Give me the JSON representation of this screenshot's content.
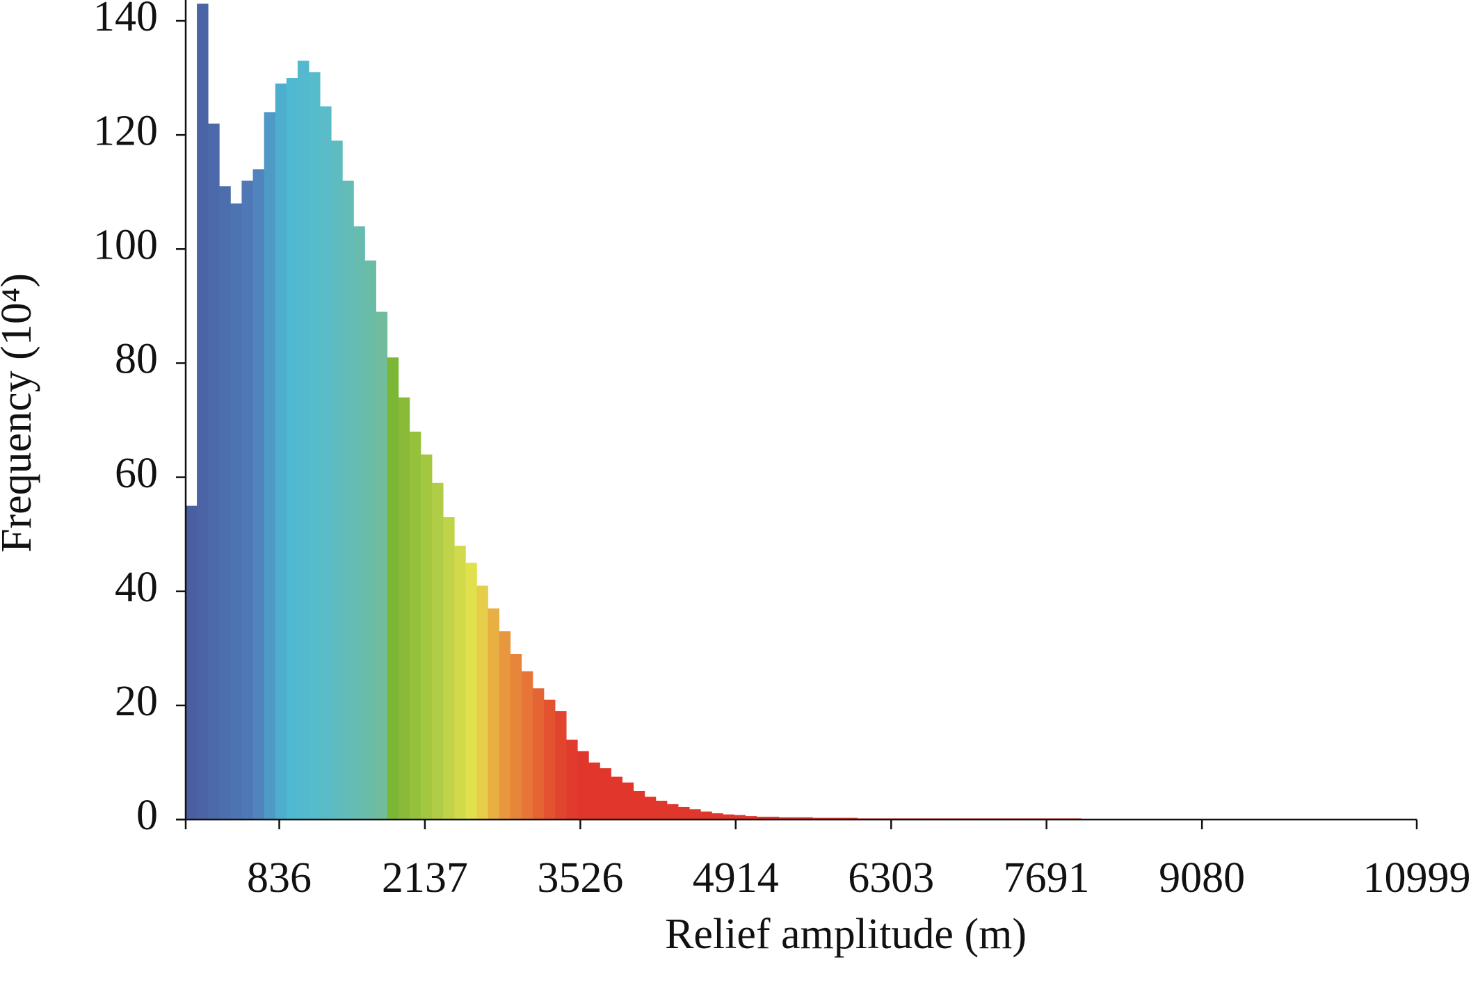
{
  "chart_data": {
    "type": "histogram",
    "x_label": "Relief amplitude (m)",
    "y_label": "Frequency (10⁴)",
    "bins": [
      0,
      100,
      200,
      300,
      400,
      500,
      600,
      700,
      800,
      900,
      1000,
      1100,
      1200,
      1300,
      1400,
      1500,
      1600,
      1700,
      1800,
      1900,
      2000,
      2100,
      2200,
      2300,
      2400,
      2500,
      2600,
      2700,
      2800,
      2900,
      3000,
      3100,
      3200,
      3300,
      3400,
      3500,
      3600,
      3700,
      3800,
      3900,
      4000,
      4100,
      4200,
      4300,
      4400,
      4500,
      4600,
      4700,
      4800,
      4900,
      5000,
      5100,
      5200,
      5300,
      5400,
      5500,
      5600,
      5700,
      5800,
      5900,
      6000,
      6100,
      6200,
      6300,
      6400,
      6500,
      6600,
      6700,
      6800,
      6900,
      7000,
      7100,
      7200,
      7300,
      7400,
      7500,
      7600,
      7700,
      7800,
      7900,
      8000,
      8100,
      8200,
      8300,
      8400,
      8500,
      8600,
      8700,
      8800,
      8900,
      9000,
      9100,
      9200,
      9300,
      9400,
      9500,
      9600,
      9700,
      9800,
      9900,
      10000,
      10100,
      10200,
      10300,
      10400,
      10500,
      10600,
      10700,
      10800,
      10900,
      10999
    ],
    "values": [
      55,
      143,
      122,
      111,
      108,
      112,
      114,
      124,
      129,
      130,
      133,
      131,
      125,
      119,
      112,
      104,
      98,
      89,
      81,
      74,
      68,
      64,
      59,
      53,
      48,
      45,
      41,
      37,
      33,
      29,
      26,
      23,
      21,
      19,
      14,
      12,
      10,
      9,
      7.5,
      6.5,
      5,
      4,
      3.3,
      2.7,
      2.2,
      1.8,
      1.4,
      1.1,
      0.9,
      0.8,
      0.6,
      0.5,
      0.5,
      0.4,
      0.4,
      0.4,
      0.3,
      0.3,
      0.3,
      0.3,
      0.2,
      0.2,
      0.2,
      0.2,
      0.2,
      0.2,
      0.2,
      0.2,
      0.2,
      0.2,
      0.2,
      0.2,
      0.2,
      0.2,
      0.2,
      0.2,
      0.2,
      0.2,
      0.2,
      0.2,
      0.1,
      0.1,
      0.1,
      0.1,
      0.1,
      0.1,
      0.1,
      0.1,
      0.1,
      0.1,
      0.1,
      0.1,
      0.1,
      0.1,
      0.1,
      0.1,
      0.1,
      0.1,
      0.1,
      0.1,
      0.1,
      0.1,
      0.1,
      0,
      0,
      0,
      0,
      0,
      0,
      0
    ],
    "color_stops": [
      {
        "value": 0,
        "color": "#4a5c9e"
      },
      {
        "value": 600,
        "color": "#4f7ab8"
      },
      {
        "value": 900,
        "color": "#4db8d2"
      },
      {
        "value": 1300,
        "color": "#5cbcc6"
      },
      {
        "value": 1800,
        "color": "#72bc98"
      },
      {
        "value": 1840,
        "color": "#7ab534"
      },
      {
        "value": 2300,
        "color": "#b8cf48"
      },
      {
        "value": 2580,
        "color": "#e6e34e"
      },
      {
        "value": 2800,
        "color": "#e8a040"
      },
      {
        "value": 3300,
        "color": "#e34a2e"
      },
      {
        "value": 3500,
        "color": "#e0362c"
      },
      {
        "value": 10999,
        "color": "#e0362c"
      }
    ],
    "xlim": [
      0,
      10999
    ],
    "xticks": [
      836,
      2137,
      3526,
      4914,
      6303,
      7691,
      9080,
      10999
    ],
    "ylim": [
      0,
      140
    ],
    "yticks": [
      0,
      20,
      40,
      60,
      80,
      100,
      120,
      140
    ],
    "grid": false
  }
}
